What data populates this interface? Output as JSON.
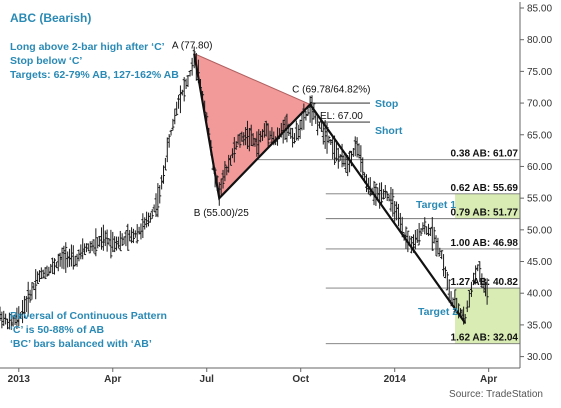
{
  "chart_data": {
    "type": "bar",
    "subtype": "ohlc-price-bars",
    "title": "ABC (Bearish)",
    "source": "Source: TradeStation",
    "notes_top": [
      "Long above 2-bar high after ‘C’",
      "Stop below ‘C’",
      "Targets: 62-79% AB, 127-162% AB"
    ],
    "notes_bottom": [
      "Reversal of Continuous Pattern",
      "‘C’ is 50-88% of AB",
      "‘BC’ bars balanced with ‘AB’"
    ],
    "x_tick_labels": [
      "2013",
      "Apr",
      "Jul",
      "Oct",
      "2014",
      "Apr"
    ],
    "x_tick_positions": [
      0,
      3,
      6,
      9,
      12,
      15
    ],
    "xlim": [
      -0.6,
      16.0
    ],
    "ylim": [
      28.2,
      85.0
    ],
    "y_ticks": [
      30,
      35,
      40,
      45,
      50,
      55,
      60,
      65,
      70,
      75,
      80,
      85
    ],
    "y_tick_labels": [
      "30.00",
      "35.00",
      "40.00",
      "45.00",
      "50.00",
      "55.00",
      "60.00",
      "65.00",
      "70.00",
      "75.00",
      "80.00",
      "85.00"
    ],
    "grid": false,
    "colors": {
      "price_bars": "#1a1a1a",
      "triangle_fill": "#f29a9a",
      "abc_line": "#111111",
      "target_zone": "#d8ecb4",
      "fib_line": "#777777",
      "label_blue": "#2a8ab5",
      "axis": "#666666"
    },
    "points": {
      "A": {
        "t": 5.6,
        "price": 77.8,
        "label": "A (77.80)"
      },
      "B": {
        "t": 6.4,
        "price": 55.0,
        "label": "B (55.00)/25"
      },
      "C": {
        "t": 9.3,
        "price": 69.78,
        "label": "C (69.78/64.82%)"
      },
      "D": {
        "t": 14.25,
        "price": 35.3
      }
    },
    "stop_level": {
      "price": 70.0,
      "label": "Stop"
    },
    "entry_level": {
      "price": 67.0,
      "label": "EL: 67.00"
    },
    "short_label": "Short",
    "fib_levels": [
      {
        "label": "0.38 AB: 61.07",
        "value": 61.07,
        "start_t": 7.0
      },
      {
        "label": "0.62 AB: 55.69",
        "value": 55.69,
        "start_t": 9.8
      },
      {
        "label": "0.79 AB: 51.77",
        "value": 51.77,
        "start_t": 9.8
      },
      {
        "label": "1.00 AB: 46.98",
        "value": 46.98,
        "start_t": 9.8
      },
      {
        "label": "1.27 AB: 40.82",
        "value": 40.82,
        "start_t": 9.8
      },
      {
        "label": "1.62 AB: 32.04",
        "value": 32.04,
        "start_t": 9.8
      }
    ],
    "target_zones": [
      {
        "label": "Target 1",
        "from": 51.77,
        "to": 55.69
      },
      {
        "label": "Target 2",
        "from": 32.04,
        "to": 40.82
      }
    ],
    "price_path": [
      [
        -0.6,
        36.5
      ],
      [
        -0.3,
        35.2
      ],
      [
        0.0,
        36.0
      ],
      [
        0.3,
        39.0
      ],
      [
        0.6,
        42.5
      ],
      [
        0.9,
        43.5
      ],
      [
        1.2,
        44.5
      ],
      [
        1.5,
        46.0
      ],
      [
        1.8,
        45.0
      ],
      [
        2.1,
        47.0
      ],
      [
        2.4,
        47.5
      ],
      [
        2.7,
        48.5
      ],
      [
        3.0,
        48.0
      ],
      [
        3.3,
        48.2
      ],
      [
        3.6,
        49.0
      ],
      [
        3.9,
        50.0
      ],
      [
        4.2,
        52.0
      ],
      [
        4.5,
        55.5
      ],
      [
        4.8,
        64.0
      ],
      [
        5.1,
        70.5
      ],
      [
        5.4,
        73.5
      ],
      [
        5.6,
        77.0
      ],
      [
        5.8,
        73.0
      ],
      [
        6.0,
        68.0
      ],
      [
        6.2,
        60.0
      ],
      [
        6.4,
        56.0
      ],
      [
        6.7,
        60.5
      ],
      [
        7.0,
        64.0
      ],
      [
        7.3,
        65.0
      ],
      [
        7.6,
        63.5
      ],
      [
        7.9,
        66.0
      ],
      [
        8.2,
        64.0
      ],
      [
        8.5,
        66.5
      ],
      [
        8.8,
        64.5
      ],
      [
        9.1,
        67.5
      ],
      [
        9.3,
        69.3
      ],
      [
        9.6,
        66.5
      ],
      [
        9.9,
        64.5
      ],
      [
        10.2,
        61.5
      ],
      [
        10.5,
        60.5
      ],
      [
        10.8,
        63.5
      ],
      [
        11.1,
        57.0
      ],
      [
        11.4,
        55.5
      ],
      [
        11.7,
        56.0
      ],
      [
        12.0,
        53.5
      ],
      [
        12.3,
        49.0
      ],
      [
        12.6,
        47.5
      ],
      [
        12.9,
        50.5
      ],
      [
        13.2,
        49.5
      ],
      [
        13.5,
        46.0
      ],
      [
        13.8,
        39.0
      ],
      [
        14.1,
        37.0
      ],
      [
        14.25,
        36.0
      ],
      [
        14.45,
        41.0
      ],
      [
        14.65,
        44.0
      ],
      [
        14.85,
        41.0
      ],
      [
        15.0,
        40.0
      ]
    ]
  }
}
